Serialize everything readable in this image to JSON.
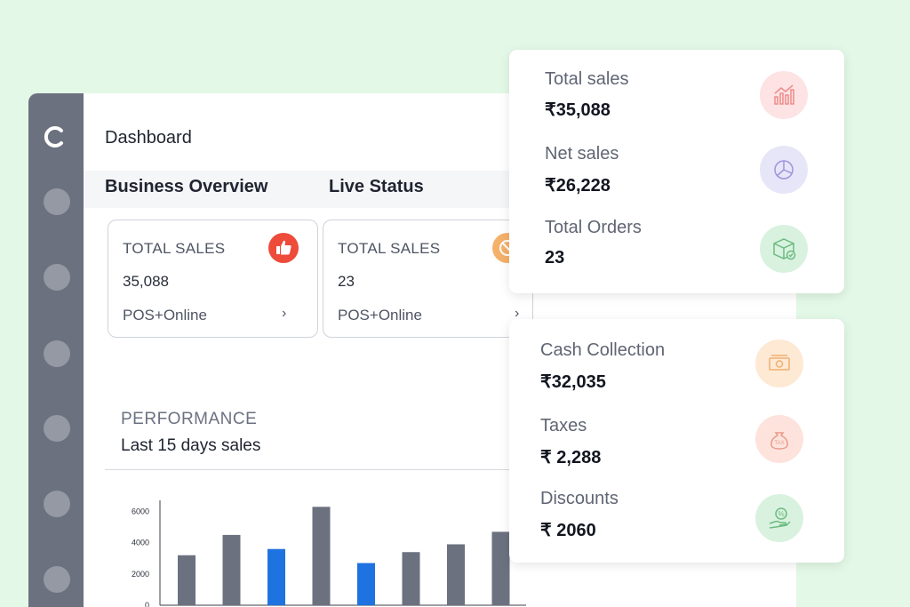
{
  "header": {
    "title": "Dashboard"
  },
  "tabs": [
    {
      "label": "Business Overview"
    },
    {
      "label": "Live Status"
    }
  ],
  "cards": [
    {
      "title": "TOTAL SALES",
      "value": "35,088",
      "footer": "POS+Online",
      "icon": "thumbs-up-icon",
      "icon_color": "#ee4b3a"
    },
    {
      "title": "TOTAL SALES",
      "value": "23",
      "footer": "POS+Online",
      "icon": "cancel-icon",
      "icon_color": "#f4b16a"
    }
  ],
  "performance": {
    "label": "PERFORMANCE",
    "subtitle": "Last 15 days sales"
  },
  "summary_top": [
    {
      "label": "Total sales",
      "value": "₹35,088",
      "icon": "bar-chart-icon"
    },
    {
      "label": "Net sales",
      "value": "₹26,228",
      "icon": "pie-chart-icon"
    },
    {
      "label": "Total Orders",
      "value": "23",
      "icon": "box-check-icon"
    }
  ],
  "summary_bottom": [
    {
      "label": "Cash Collection",
      "value": "₹32,035",
      "icon": "cash-icon"
    },
    {
      "label": "Taxes",
      "value": "₹ 2,288",
      "icon": "tax-bag-icon"
    },
    {
      "label": "Discounts",
      "value": "₹ 2060",
      "icon": "discount-hand-icon"
    }
  ],
  "chart_data": {
    "type": "bar",
    "categories": [
      "",
      "",
      "",
      "",
      "",
      "",
      "",
      ""
    ],
    "values": [
      3200,
      4500,
      3600,
      6300,
      2700,
      3400,
      3900,
      4700
    ],
    "highlighted": [
      false,
      false,
      true,
      false,
      true,
      false,
      false,
      false
    ],
    "colors": {
      "default": "#6b717f",
      "highlight": "#1f73e0"
    },
    "yticks": [
      "0",
      "2000",
      "4000",
      "6000"
    ],
    "ylim": [
      0,
      6600
    ],
    "title": "",
    "xlabel": "",
    "ylabel": ""
  }
}
